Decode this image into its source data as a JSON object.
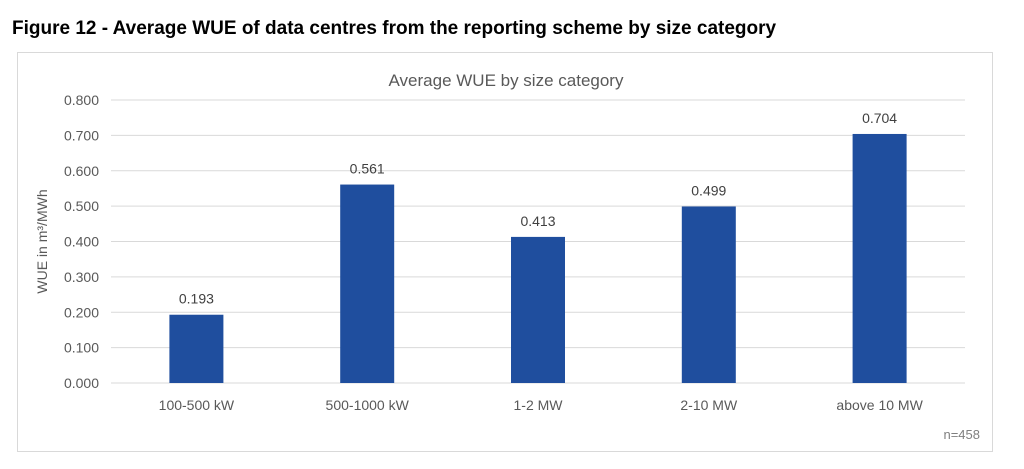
{
  "figure_title": "Figure 12 - Average WUE of data centres from the reporting scheme by size category",
  "footnote": "n=458",
  "colors": {
    "bar": "#1f4e9e",
    "grid": "#d9d9d9",
    "text": "#595959"
  },
  "chart_data": {
    "type": "bar",
    "title": "Average WUE by size category",
    "xlabel": "",
    "ylabel": "WUE in m³/MWh",
    "categories": [
      "100-500 kW",
      "500-1000 kW",
      "1-2 MW",
      "2-10 MW",
      "above 10 MW"
    ],
    "values": [
      0.193,
      0.561,
      0.413,
      0.499,
      0.704
    ],
    "data_labels": [
      "0.193",
      "0.561",
      "0.413",
      "0.499",
      "0.704"
    ],
    "ylim": [
      0,
      0.8
    ],
    "yticks": [
      "0.000",
      "0.100",
      "0.200",
      "0.300",
      "0.400",
      "0.500",
      "0.600",
      "0.700",
      "0.800"
    ],
    "grid": true,
    "legend": "none"
  }
}
